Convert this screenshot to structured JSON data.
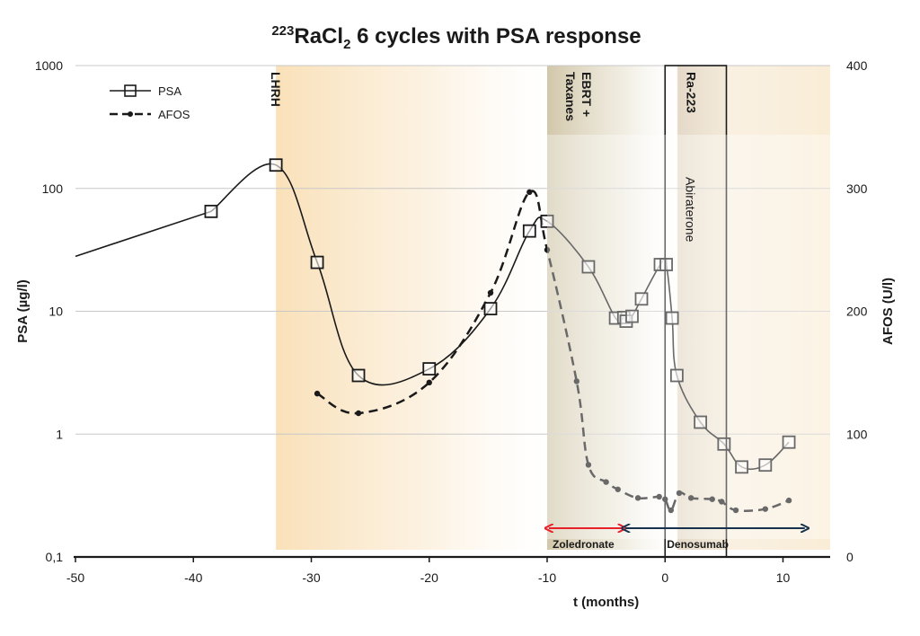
{
  "chart_data": {
    "type": "line",
    "title": {
      "superscript": "223",
      "main": "RaCl",
      "subscript": "2",
      "rest": " 6 cycles with PSA response"
    },
    "xlabel": "t (months)",
    "ylabel_left": "PSA (µg/l)",
    "ylabel_right": "AFOS (U/l)",
    "xlim": [
      -50,
      14
    ],
    "x_ticks": [
      -50,
      -40,
      -30,
      -20,
      -10,
      0,
      10
    ],
    "x_tick_labels": [
      "-50",
      "-40",
      "-30",
      "-20",
      "-10",
      "0",
      "10"
    ],
    "y_left_scale": "log",
    "y_left_lim": [
      0.1,
      1000
    ],
    "y_left_ticks": [
      0.1,
      1,
      10,
      100,
      1000
    ],
    "y_left_tick_labels": [
      "0,1",
      "1",
      "10",
      "100",
      "1000"
    ],
    "y_right_lim": [
      0,
      400
    ],
    "y_right_ticks": [
      0,
      100,
      200,
      300,
      400
    ],
    "y_right_tick_labels": [
      "0",
      "100",
      "200",
      "300",
      "400"
    ],
    "grid": true,
    "legend_position": "top-left",
    "series": [
      {
        "name": "PSA",
        "axis": "left",
        "style": "solid-square-markers",
        "x_start_line": -50,
        "y_start_line": 28,
        "points": [
          {
            "x": -38.5,
            "y": 65
          },
          {
            "x": -33,
            "y": 155
          },
          {
            "x": -29.5,
            "y": 25
          },
          {
            "x": -26,
            "y": 3.0
          },
          {
            "x": -20,
            "y": 3.4
          },
          {
            "x": -14.8,
            "y": 10.5
          },
          {
            "x": -11.5,
            "y": 45
          },
          {
            "x": -10,
            "y": 54
          },
          {
            "x": -6.5,
            "y": 23
          },
          {
            "x": -4.2,
            "y": 8.8
          },
          {
            "x": -3.5,
            "y": 8.9
          },
          {
            "x": -3.3,
            "y": 8.3
          },
          {
            "x": -2.8,
            "y": 9.1
          },
          {
            "x": -2.0,
            "y": 12.6
          },
          {
            "x": -0.4,
            "y": 24
          },
          {
            "x": 0.1,
            "y": 24
          },
          {
            "x": 0.6,
            "y": 8.8
          },
          {
            "x": 1.0,
            "y": 3.0
          },
          {
            "x": 3.0,
            "y": 1.25
          },
          {
            "x": 5.0,
            "y": 0.83
          },
          {
            "x": 6.5,
            "y": 0.54
          },
          {
            "x": 8.5,
            "y": 0.56
          },
          {
            "x": 10.5,
            "y": 0.86
          }
        ]
      },
      {
        "name": "AFOS",
        "axis": "right",
        "style": "dashed-dot-markers",
        "points": [
          {
            "x": -29.5,
            "y": 133
          },
          {
            "x": -26,
            "y": 117
          },
          {
            "x": -20,
            "y": 142
          },
          {
            "x": -14.8,
            "y": 215
          },
          {
            "x": -11.5,
            "y": 297
          },
          {
            "x": -10,
            "y": 250
          },
          {
            "x": -7.5,
            "y": 143
          },
          {
            "x": -6.5,
            "y": 75
          },
          {
            "x": -5,
            "y": 61
          },
          {
            "x": -4,
            "y": 55
          },
          {
            "x": -2.3,
            "y": 48
          },
          {
            "x": -0.5,
            "y": 49
          },
          {
            "x": 0,
            "y": 47
          },
          {
            "x": 0.5,
            "y": 38
          },
          {
            "x": 1.2,
            "y": 52
          },
          {
            "x": 2.2,
            "y": 48
          },
          {
            "x": 4.0,
            "y": 47
          },
          {
            "x": 4.8,
            "y": 45
          },
          {
            "x": 6.0,
            "y": 38
          },
          {
            "x": 8.5,
            "y": 39
          },
          {
            "x": 10.5,
            "y": 46
          }
        ]
      }
    ],
    "periods": [
      {
        "label": "LHRH",
        "x_start": -33,
        "x_end": -10
      },
      {
        "label_line1": "EBRT +",
        "label_line2": "Taxanes",
        "x_start": -10,
        "x_end": 1
      },
      {
        "label": "Abiraterone",
        "x_start": 1,
        "x_end": 14
      },
      {
        "label": "Ra-223",
        "x_start": 0,
        "x_end": 5.2
      }
    ],
    "treatment_bars": [
      {
        "label": "Zoledronate",
        "x_start": -10,
        "x_end": -3.5,
        "color": "#e8202a"
      },
      {
        "label": "Denosumab",
        "x_start": -3.5,
        "x_end": 12,
        "color": "#17324d"
      }
    ]
  }
}
